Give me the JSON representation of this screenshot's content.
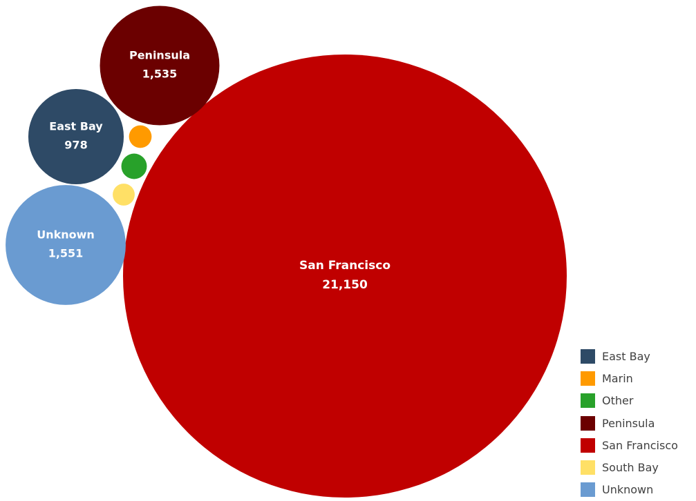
{
  "chart_data": {
    "type": "bubble",
    "title": "",
    "legend_position": "bottom-right",
    "series": [
      {
        "name": "San Francisco",
        "value": 21150,
        "value_label": "21,150",
        "color": "#C00000",
        "show_label": true
      },
      {
        "name": "Peninsula",
        "value": 1535,
        "value_label": "1,535",
        "color": "#6B0000",
        "show_label": true
      },
      {
        "name": "East Bay",
        "value": 978,
        "value_label": "978",
        "color": "#2E4A66",
        "show_label": true
      },
      {
        "name": "Unknown",
        "value": 1551,
        "value_label": "1,551",
        "color": "#6A9BD1",
        "show_label": true
      },
      {
        "name": "Marin",
        "value": 55,
        "value_label": "",
        "color": "#FF9A00",
        "show_label": false
      },
      {
        "name": "Other",
        "value": 70,
        "value_label": "",
        "color": "#28A12A",
        "show_label": false
      },
      {
        "name": "South Bay",
        "value": 52,
        "value_label": "",
        "color": "#FFE066",
        "show_label": false
      }
    ],
    "legend": [
      {
        "name": "East Bay",
        "color": "#2E4A66"
      },
      {
        "name": "Marin",
        "color": "#FF9A00"
      },
      {
        "name": "Other",
        "color": "#28A12A"
      },
      {
        "name": "Peninsula",
        "color": "#6B0000"
      },
      {
        "name": "San Francisco",
        "color": "#C00000"
      },
      {
        "name": "South Bay",
        "color": "#FFE066"
      },
      {
        "name": "Unknown",
        "color": "#6A9BD1"
      }
    ]
  }
}
